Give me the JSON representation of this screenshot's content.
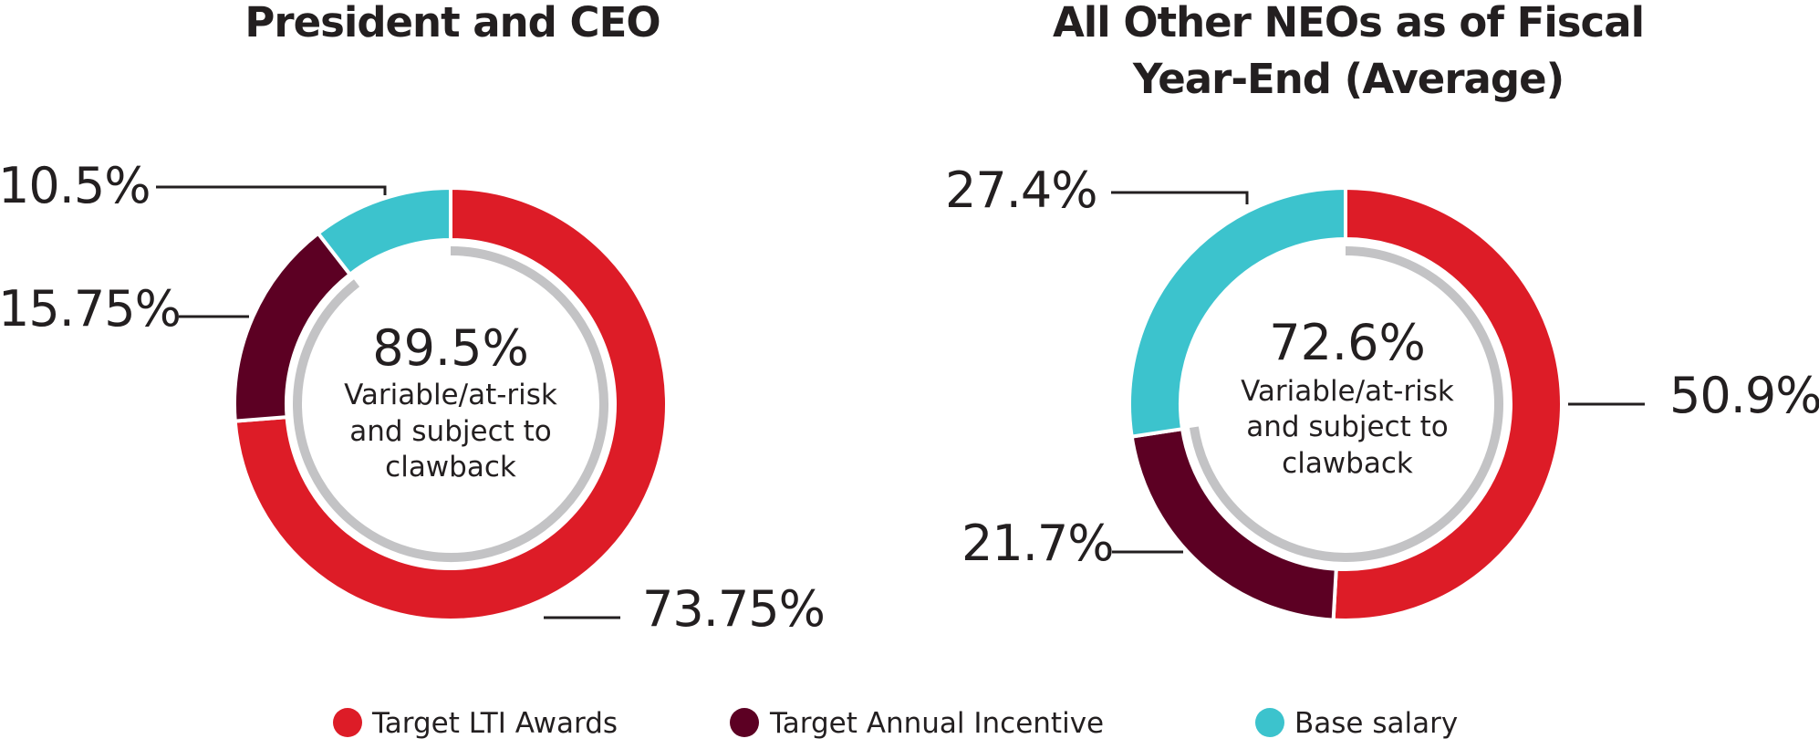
{
  "colors": {
    "lti": "#dd1c27",
    "annual": "#5c0023",
    "base": "#3cc3cd",
    "inner_ring": "#c3c3c5",
    "text": "#231f20"
  },
  "legend": [
    {
      "label": "Target LTI Awards",
      "key": "lti"
    },
    {
      "label": "Target Annual Incentive",
      "key": "annual"
    },
    {
      "label": "Base salary",
      "key": "base"
    }
  ],
  "chart_data": [
    {
      "type": "pie",
      "variant": "donut",
      "title_lines": [
        "President and CEO"
      ],
      "center_value": "89.5%",
      "center_text": [
        "Variable/at-risk",
        "and subject to",
        "clawback"
      ],
      "variable_share": 89.5,
      "series": [
        {
          "name": "Target LTI Awards",
          "key": "lti",
          "value": 73.75,
          "label": "73.75%"
        },
        {
          "name": "Target Annual Incentive",
          "key": "annual",
          "value": 15.75,
          "label": "15.75%"
        },
        {
          "name": "Base salary",
          "key": "base",
          "value": 10.5,
          "label": "10.5%"
        }
      ]
    },
    {
      "type": "pie",
      "variant": "donut",
      "title_lines": [
        "All Other NEOs as of Fiscal",
        "Year-End (Average)"
      ],
      "center_value": "72.6%",
      "center_text": [
        "Variable/at-risk",
        "and subject to",
        "clawback"
      ],
      "variable_share": 72.6,
      "series": [
        {
          "name": "Target LTI Awards",
          "key": "lti",
          "value": 50.9,
          "label": "50.9%"
        },
        {
          "name": "Target Annual Incentive",
          "key": "annual",
          "value": 21.7,
          "label": "21.7%"
        },
        {
          "name": "Base salary",
          "key": "base",
          "value": 27.4,
          "label": "27.4%"
        }
      ]
    }
  ]
}
